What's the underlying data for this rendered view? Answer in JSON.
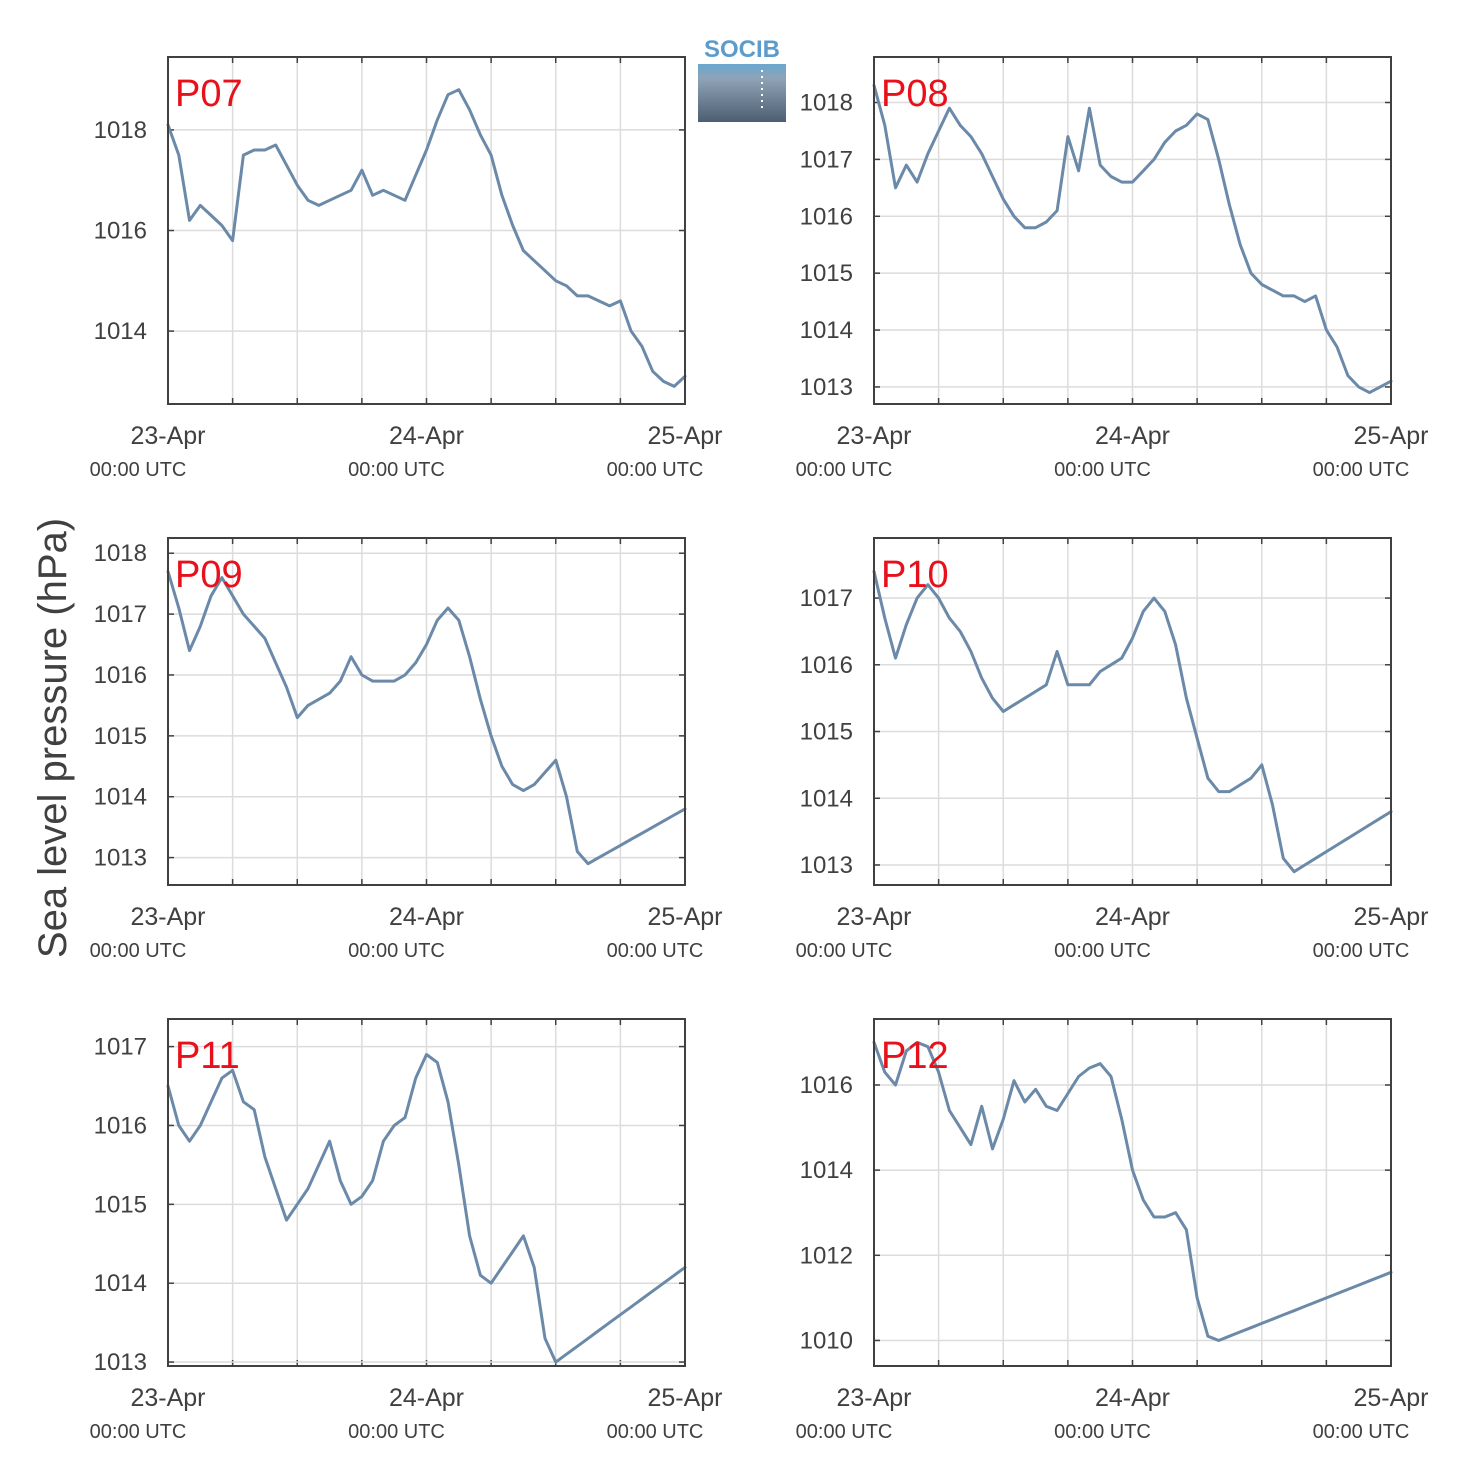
{
  "figure": {
    "ylabel": "Sea level pressure (hPa)",
    "logo_text": "SOCIB",
    "line_color": "#6b89a8",
    "label_color": "#e8101a"
  },
  "chart_data": [
    {
      "type": "line",
      "title": "P07",
      "x_ticks": [
        {
          "date": "23-Apr",
          "time": "00:00 UTC"
        },
        {
          "date": "24-Apr",
          "time": "00:00 UTC"
        },
        {
          "date": "25-Apr",
          "time": "00:00 UTC"
        }
      ],
      "ylim": [
        1012.55,
        1019.45
      ],
      "yticks": [
        1014,
        1016,
        1018
      ],
      "x": [
        0,
        1,
        2,
        3,
        4,
        5,
        6,
        7,
        8,
        9,
        10,
        11,
        12,
        13,
        14,
        15,
        16,
        17,
        18,
        19,
        20,
        21,
        22,
        23,
        24,
        25,
        26,
        27,
        28,
        29,
        30,
        31,
        32,
        33,
        34,
        35,
        36,
        37,
        38,
        39,
        40,
        41,
        42,
        43,
        44,
        45,
        46,
        47,
        48
      ],
      "values": [
        1018.1,
        1017.5,
        1016.2,
        1016.5,
        1016.3,
        1016.1,
        1015.8,
        1017.5,
        1017.6,
        1017.6,
        1017.7,
        1017.3,
        1016.9,
        1016.6,
        1016.5,
        1016.6,
        1016.7,
        1016.8,
        1017.2,
        1016.7,
        1016.8,
        1016.7,
        1016.6,
        1017.1,
        1017.6,
        1018.2,
        1018.7,
        1018.8,
        1018.4,
        1017.9,
        1017.5,
        1016.7,
        1016.1,
        1015.6,
        1015.4,
        1015.2,
        1015.0,
        1014.9,
        1014.7,
        1014.7,
        1014.6,
        1014.5,
        1014.6,
        1014.0,
        1013.7,
        1013.2,
        1013.0,
        1012.9,
        1013.1
      ]
    },
    {
      "type": "line",
      "title": "P08",
      "x_ticks": [
        {
          "date": "23-Apr",
          "time": "00:00 UTC"
        },
        {
          "date": "24-Apr",
          "time": "00:00 UTC"
        },
        {
          "date": "25-Apr",
          "time": "00:00 UTC"
        }
      ],
      "ylim": [
        1012.7,
        1018.8
      ],
      "yticks": [
        1013,
        1014,
        1015,
        1016,
        1017,
        1018
      ],
      "x": [
        0,
        1,
        2,
        3,
        4,
        5,
        6,
        7,
        8,
        9,
        10,
        11,
        12,
        13,
        14,
        15,
        16,
        17,
        18,
        19,
        20,
        21,
        22,
        23,
        24,
        25,
        26,
        27,
        28,
        29,
        30,
        31,
        32,
        33,
        34,
        35,
        36,
        37,
        38,
        39,
        40,
        41,
        42,
        43,
        44,
        45,
        46,
        47,
        48
      ],
      "values": [
        1018.3,
        1017.6,
        1016.5,
        1016.9,
        1016.6,
        1017.1,
        1017.5,
        1017.9,
        1017.6,
        1017.4,
        1017.1,
        1016.7,
        1016.3,
        1016.0,
        1015.8,
        1015.8,
        1015.9,
        1016.1,
        1017.4,
        1016.8,
        1017.9,
        1016.9,
        1016.7,
        1016.6,
        1016.6,
        1016.8,
        1017.0,
        1017.3,
        1017.5,
        1017.6,
        1017.8,
        1017.7,
        1017.0,
        1016.2,
        1015.5,
        1015.0,
        1014.8,
        1014.7,
        1014.6,
        1014.6,
        1014.5,
        1014.6,
        1014.0,
        1013.7,
        1013.2,
        1013.0,
        1012.9,
        1013.0,
        1013.1
      ]
    },
    {
      "type": "line",
      "title": "P09",
      "x_ticks": [
        {
          "date": "23-Apr",
          "time": "00:00 UTC"
        },
        {
          "date": "24-Apr",
          "time": "00:00 UTC"
        },
        {
          "date": "25-Apr",
          "time": "00:00 UTC"
        }
      ],
      "ylim": [
        1012.55,
        1018.25
      ],
      "yticks": [
        1013,
        1014,
        1015,
        1016,
        1017,
        1018
      ],
      "x": [
        0,
        1,
        2,
        3,
        4,
        5,
        6,
        7,
        8,
        9,
        10,
        11,
        12,
        13,
        14,
        15,
        16,
        17,
        18,
        19,
        20,
        21,
        22,
        23,
        24,
        25,
        26,
        27,
        28,
        29,
        30,
        31,
        32,
        33,
        34,
        35,
        36,
        37,
        38,
        39,
        40,
        41,
        42,
        43,
        44,
        45,
        46,
        47,
        48
      ],
      "values": [
        1017.7,
        1017.1,
        1016.4,
        1016.8,
        1017.3,
        1017.6,
        1017.3,
        1017.0,
        1016.8,
        1016.6,
        1016.2,
        1015.8,
        1015.3,
        1015.5,
        1015.6,
        1015.7,
        1015.9,
        1016.3,
        1016.0,
        1015.9,
        1015.9,
        1015.9,
        1016.0,
        1016.2,
        1016.5,
        1016.9,
        1017.1,
        1016.9,
        1016.3,
        1015.6,
        1015.0,
        1014.5,
        1014.2,
        1014.1,
        1014.2,
        1014.4,
        1014.6,
        1014.0,
        1013.1,
        1012.9,
        1013.0,
        1013.1,
        1013.2,
        1013.3,
        1013.4,
        1013.5,
        1013.6,
        1013.7,
        1013.8
      ]
    },
    {
      "type": "line",
      "title": "P10",
      "x_ticks": [
        {
          "date": "23-Apr",
          "time": "00:00 UTC"
        },
        {
          "date": "24-Apr",
          "time": "00:00 UTC"
        },
        {
          "date": "25-Apr",
          "time": "00:00 UTC"
        }
      ],
      "ylim": [
        1012.7,
        1017.9
      ],
      "yticks": [
        1013,
        1014,
        1015,
        1016,
        1017
      ],
      "x": [
        0,
        1,
        2,
        3,
        4,
        5,
        6,
        7,
        8,
        9,
        10,
        11,
        12,
        13,
        14,
        15,
        16,
        17,
        18,
        19,
        20,
        21,
        22,
        23,
        24,
        25,
        26,
        27,
        28,
        29,
        30,
        31,
        32,
        33,
        34,
        35,
        36,
        37,
        38,
        39,
        40,
        41,
        42,
        43,
        44,
        45,
        46,
        47,
        48
      ],
      "values": [
        1017.4,
        1016.7,
        1016.1,
        1016.6,
        1017.0,
        1017.2,
        1017.0,
        1016.7,
        1016.5,
        1016.2,
        1015.8,
        1015.5,
        1015.3,
        1015.4,
        1015.5,
        1015.6,
        1015.7,
        1016.2,
        1015.7,
        1015.7,
        1015.7,
        1015.9,
        1016.0,
        1016.1,
        1016.4,
        1016.8,
        1017.0,
        1016.8,
        1016.3,
        1015.5,
        1014.9,
        1014.3,
        1014.1,
        1014.1,
        1014.2,
        1014.3,
        1014.5,
        1013.9,
        1013.1,
        1012.9,
        1013.0,
        1013.1,
        1013.2,
        1013.3,
        1013.4,
        1013.5,
        1013.6,
        1013.7,
        1013.8
      ]
    },
    {
      "type": "line",
      "title": "P11",
      "x_ticks": [
        {
          "date": "23-Apr",
          "time": "00:00 UTC"
        },
        {
          "date": "24-Apr",
          "time": "00:00 UTC"
        },
        {
          "date": "25-Apr",
          "time": "00:00 UTC"
        }
      ],
      "ylim": [
        1012.95,
        1017.35
      ],
      "yticks": [
        1013,
        1014,
        1015,
        1016,
        1017
      ],
      "x": [
        0,
        1,
        2,
        3,
        4,
        5,
        6,
        7,
        8,
        9,
        10,
        11,
        12,
        13,
        14,
        15,
        16,
        17,
        18,
        19,
        20,
        21,
        22,
        23,
        24,
        25,
        26,
        27,
        28,
        29,
        30,
        31,
        32,
        33,
        34,
        35,
        36,
        37,
        38,
        39,
        40,
        41,
        42,
        43,
        44,
        45,
        46,
        47,
        48
      ],
      "values": [
        1016.5,
        1016.0,
        1015.8,
        1016.0,
        1016.3,
        1016.6,
        1016.7,
        1016.3,
        1016.2,
        1015.6,
        1015.2,
        1014.8,
        1015.0,
        1015.2,
        1015.5,
        1015.8,
        1015.3,
        1015.0,
        1015.1,
        1015.3,
        1015.8,
        1016.0,
        1016.1,
        1016.6,
        1016.9,
        1016.8,
        1016.3,
        1015.5,
        1014.6,
        1014.1,
        1014.0,
        1014.2,
        1014.4,
        1014.6,
        1014.2,
        1013.3,
        1013.0,
        1013.1,
        1013.2,
        1013.3,
        1013.4,
        1013.5,
        1013.6,
        1013.7,
        1013.8,
        1013.9,
        1014.0,
        1014.1,
        1014.2
      ]
    },
    {
      "type": "line",
      "title": "P12",
      "x_ticks": [
        {
          "date": "23-Apr",
          "time": "00:00 UTC"
        },
        {
          "date": "24-Apr",
          "time": "00:00 UTC"
        },
        {
          "date": "25-Apr",
          "time": "00:00 UTC"
        }
      ],
      "ylim": [
        1009.4,
        1017.55
      ],
      "yticks": [
        1010,
        1012,
        1014,
        1016
      ],
      "x": [
        0,
        1,
        2,
        3,
        4,
        5,
        6,
        7,
        8,
        9,
        10,
        11,
        12,
        13,
        14,
        15,
        16,
        17,
        18,
        19,
        20,
        21,
        22,
        23,
        24,
        25,
        26,
        27,
        28,
        29,
        30,
        31,
        32,
        33,
        34,
        35,
        36,
        37,
        38,
        39,
        40,
        41,
        42,
        43,
        44,
        45,
        46,
        47,
        48
      ],
      "values": [
        1017.0,
        1016.3,
        1016.0,
        1016.8,
        1017.0,
        1016.9,
        1016.3,
        1015.4,
        1015.0,
        1014.6,
        1015.5,
        1014.5,
        1015.2,
        1016.1,
        1015.6,
        1015.9,
        1015.5,
        1015.4,
        1015.8,
        1016.2,
        1016.4,
        1016.5,
        1016.2,
        1015.2,
        1014.0,
        1013.3,
        1012.9,
        1012.9,
        1013.0,
        1012.6,
        1011.0,
        1010.1,
        1010.0,
        1010.1,
        1010.2,
        1010.3,
        1010.4,
        1010.5,
        1010.6,
        1010.7,
        1010.8,
        1010.9,
        1011.0,
        1011.1,
        1011.2,
        1011.3,
        1011.4,
        1011.5,
        1011.6
      ]
    }
  ]
}
